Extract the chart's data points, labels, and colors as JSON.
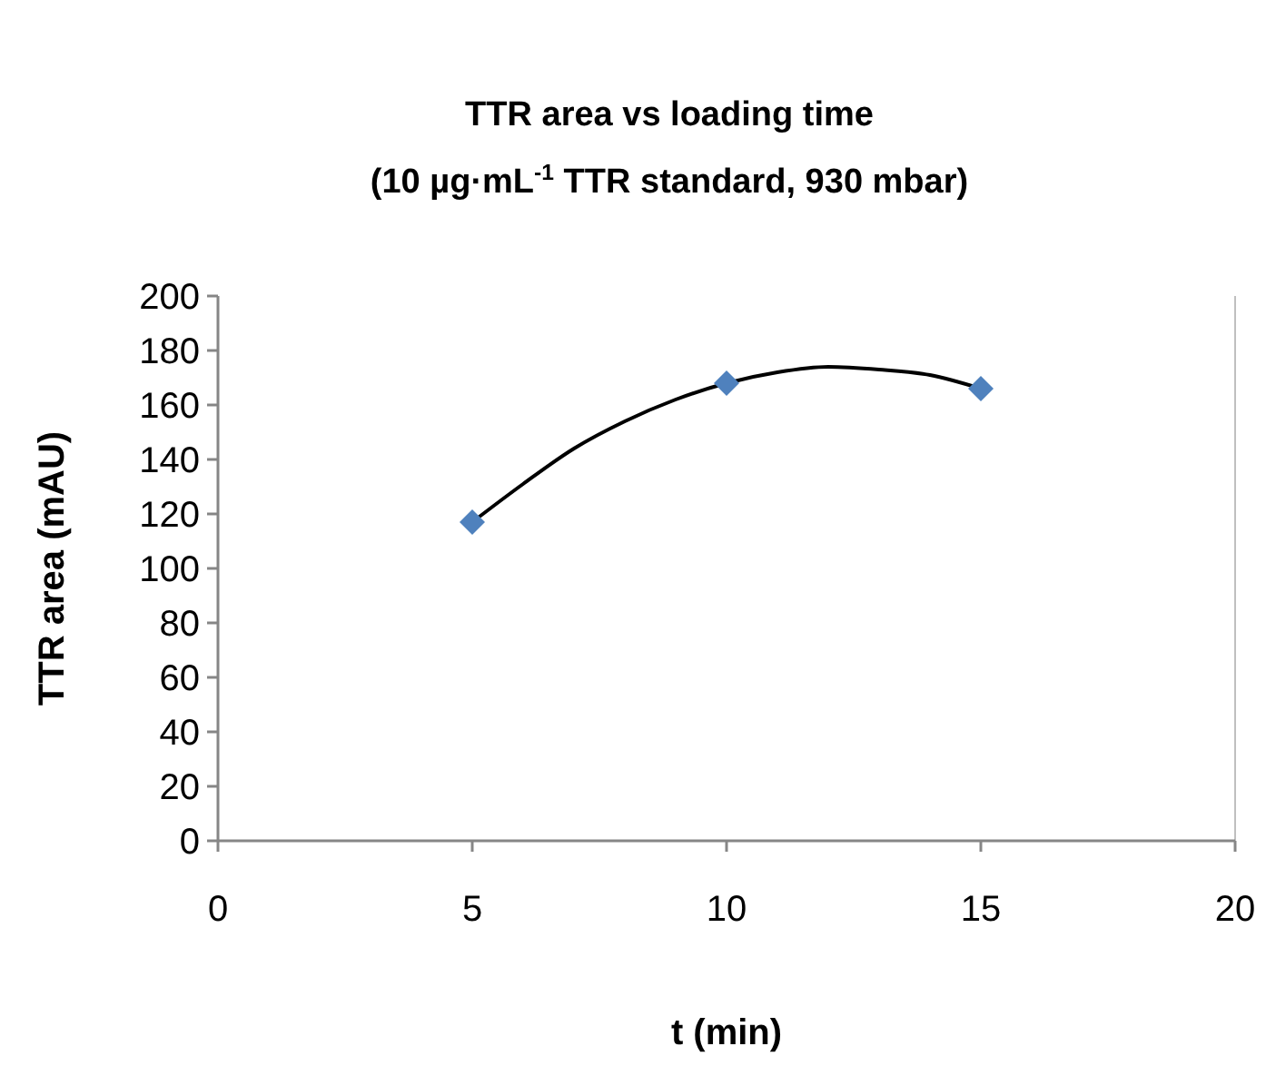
{
  "chart_data": {
    "type": "scatter",
    "title": "TTR area vs loading time",
    "subtitle": "(10 µg·mL$^{-1}$ TTR standard, 930 mbar)",
    "xlabel": "t (min)",
    "ylabel": "TTR area (mAU)",
    "xlim": [
      0,
      20
    ],
    "xticks": [
      0,
      5,
      10,
      15,
      20
    ],
    "ylim": [
      0,
      200
    ],
    "yticks": [
      0,
      20,
      40,
      60,
      80,
      100,
      120,
      140,
      160,
      180,
      200
    ],
    "grid": false,
    "series": [
      {
        "type": "line",
        "color": "#000000",
        "marker": "none",
        "line_style": "solid",
        "x": [
          5,
          6,
          7,
          8,
          9,
          10,
          11,
          12,
          13,
          14,
          15
        ],
        "values": [
          117,
          131,
          144,
          154,
          162,
          168,
          172,
          174,
          173,
          171,
          166
        ]
      },
      {
        "type": "scatter",
        "color": "#4f81bd",
        "marker": "diamond",
        "x": [
          5,
          10,
          15
        ],
        "values": [
          117,
          168,
          166
        ]
      }
    ]
  }
}
